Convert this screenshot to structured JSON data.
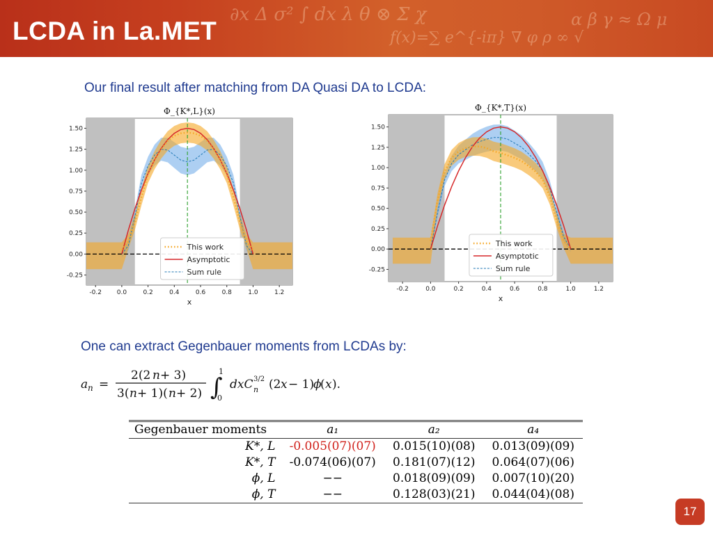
{
  "header": {
    "title": "LCDA in La.MET"
  },
  "subtitle1": "Our final result after matching from DA Quasi DA to LCDA:",
  "subtitle2": "One can extract Gegenbauer moments from LCDAs by:",
  "formula_alt": "a_n = 2(2n+3)/(3(n+1)(n+2)) ∫_0^1 dx C_n^{3/2}(2x−1) φ(x).",
  "colors": {
    "header": "#c6401f",
    "text_blue": "#1f3a8f",
    "highlight_red": "#d0201a",
    "band_orange": "#f5a623",
    "band_blue": "#6aa8e8",
    "asymptotic": "#d62728",
    "sumrule": "#1f77b4",
    "shade": "#c0c0c0",
    "zero_line": "#000000",
    "center_line": "#2ca02c"
  },
  "chart_data": [
    {
      "type": "line",
      "title": "Φ_{K*,L}(x)",
      "xlabel": "x",
      "ylabel": "",
      "xlim": [
        -0.27,
        1.3
      ],
      "ylim": [
        -0.37,
        1.62
      ],
      "xticks": [
        -0.2,
        0.0,
        0.2,
        0.4,
        0.6,
        0.8,
        1.0,
        1.2
      ],
      "yticks": [
        -0.25,
        0.0,
        0.25,
        0.5,
        0.75,
        1.0,
        1.25,
        1.5
      ],
      "shaded_regions": [
        [
          -0.27,
          0.1
        ],
        [
          0.9,
          1.3
        ]
      ],
      "center_line": 0.5,
      "legend": [
        "This work",
        "Asymptotic",
        "Sum rule"
      ],
      "legend_loc": "lower center",
      "series": [
        {
          "name": "Asymptotic",
          "x": [
            0,
            0.05,
            0.1,
            0.15,
            0.2,
            0.25,
            0.3,
            0.35,
            0.4,
            0.45,
            0.5,
            0.55,
            0.6,
            0.65,
            0.7,
            0.75,
            0.8,
            0.85,
            0.9,
            0.95,
            1.0
          ],
          "y": [
            0,
            0.285,
            0.54,
            0.765,
            0.96,
            1.125,
            1.26,
            1.365,
            1.44,
            1.485,
            1.5,
            1.485,
            1.44,
            1.365,
            1.26,
            1.125,
            0.96,
            0.765,
            0.54,
            0.285,
            0
          ]
        },
        {
          "name": "This work",
          "x": [
            0,
            0.05,
            0.1,
            0.15,
            0.2,
            0.25,
            0.3,
            0.35,
            0.4,
            0.45,
            0.5,
            0.55,
            0.6,
            0.65,
            0.7,
            0.75,
            0.8,
            0.85,
            0.9,
            0.95,
            1.0
          ],
          "y": [
            0.05,
            0.15,
            0.38,
            0.68,
            0.95,
            1.12,
            1.25,
            1.35,
            1.41,
            1.44,
            1.45,
            1.44,
            1.41,
            1.35,
            1.25,
            1.12,
            0.95,
            0.68,
            0.38,
            0.15,
            0.05
          ]
        },
        {
          "name": "Sum rule",
          "x": [
            0,
            0.05,
            0.1,
            0.15,
            0.2,
            0.25,
            0.3,
            0.35,
            0.4,
            0.45,
            0.5,
            0.55,
            0.6,
            0.65,
            0.7,
            0.75,
            0.8,
            0.85,
            0.9,
            0.95,
            1.0
          ],
          "y": [
            0,
            0.1,
            0.45,
            0.85,
            1.05,
            1.18,
            1.25,
            1.24,
            1.18,
            1.12,
            1.1,
            1.12,
            1.18,
            1.24,
            1.25,
            1.18,
            1.05,
            0.85,
            0.45,
            0.1,
            0
          ]
        }
      ]
    },
    {
      "type": "line",
      "title": "Φ_{K*,T}(x)",
      "xlabel": "x",
      "ylabel": "",
      "xlim": [
        -0.3,
        1.3
      ],
      "ylim": [
        -0.4,
        1.65
      ],
      "xticks": [
        -0.2,
        0.0,
        0.2,
        0.4,
        0.6,
        0.8,
        1.0,
        1.2
      ],
      "yticks": [
        -0.25,
        0.0,
        0.25,
        0.5,
        0.75,
        1.0,
        1.25,
        1.5
      ],
      "shaded_regions": [
        [
          -0.3,
          0.1
        ],
        [
          0.9,
          1.3
        ]
      ],
      "center_line": 0.5,
      "legend": [
        "This work",
        "Asymptotic",
        "Sum rule"
      ],
      "legend_loc": "lower center",
      "series": [
        {
          "name": "Asymptotic",
          "x": [
            0,
            0.05,
            0.1,
            0.15,
            0.2,
            0.25,
            0.3,
            0.35,
            0.4,
            0.45,
            0.5,
            0.55,
            0.6,
            0.65,
            0.7,
            0.75,
            0.8,
            0.85,
            0.9,
            0.95,
            1.0
          ],
          "y": [
            0,
            0.285,
            0.54,
            0.765,
            0.96,
            1.125,
            1.26,
            1.365,
            1.44,
            1.485,
            1.5,
            1.485,
            1.44,
            1.365,
            1.26,
            1.125,
            0.96,
            0.765,
            0.54,
            0.285,
            0
          ]
        },
        {
          "name": "This work",
          "x": [
            0,
            0.05,
            0.1,
            0.15,
            0.2,
            0.25,
            0.3,
            0.35,
            0.4,
            0.45,
            0.5,
            0.55,
            0.6,
            0.65,
            0.7,
            0.75,
            0.8,
            0.85,
            0.9,
            0.95,
            1.0
          ],
          "y": [
            0.1,
            0.6,
            0.95,
            1.12,
            1.2,
            1.24,
            1.26,
            1.26,
            1.24,
            1.2,
            1.18,
            1.15,
            1.12,
            1.08,
            1.02,
            0.95,
            0.85,
            0.65,
            0.35,
            0.1,
            0
          ]
        },
        {
          "name": "Sum rule",
          "x": [
            0,
            0.05,
            0.1,
            0.15,
            0.2,
            0.25,
            0.3,
            0.35,
            0.4,
            0.45,
            0.5,
            0.55,
            0.6,
            0.65,
            0.7,
            0.75,
            0.8,
            0.85,
            0.9,
            0.95,
            1.0
          ],
          "y": [
            0,
            0.45,
            0.85,
            1.05,
            1.16,
            1.22,
            1.28,
            1.32,
            1.35,
            1.37,
            1.37,
            1.35,
            1.3,
            1.25,
            1.17,
            1.08,
            0.96,
            0.75,
            0.45,
            0.15,
            0
          ]
        }
      ]
    }
  ],
  "table": {
    "headers": [
      "Gegenbauer moments",
      "a₁",
      "a₂",
      "a₄"
    ],
    "rows": [
      {
        "label": "K*, L",
        "a1": "-0.005(07)(07)",
        "a1_red": true,
        "a2": "0.015(10)(08)",
        "a4": "0.013(09)(09)"
      },
      {
        "label": "K*, T",
        "a1": "-0.074(06)(07)",
        "a1_red": false,
        "a2": "0.181(07)(12)",
        "a4": "0.064(07)(06)"
      },
      {
        "label": "ϕ, L",
        "a1": "−−",
        "a1_red": false,
        "a2": "0.018(09)(09)",
        "a4": "0.007(10)(20)"
      },
      {
        "label": "ϕ, T",
        "a1": "−−",
        "a1_red": false,
        "a2": "0.128(03)(21)",
        "a4": "0.044(04)(08)"
      }
    ]
  },
  "page_number": "17"
}
